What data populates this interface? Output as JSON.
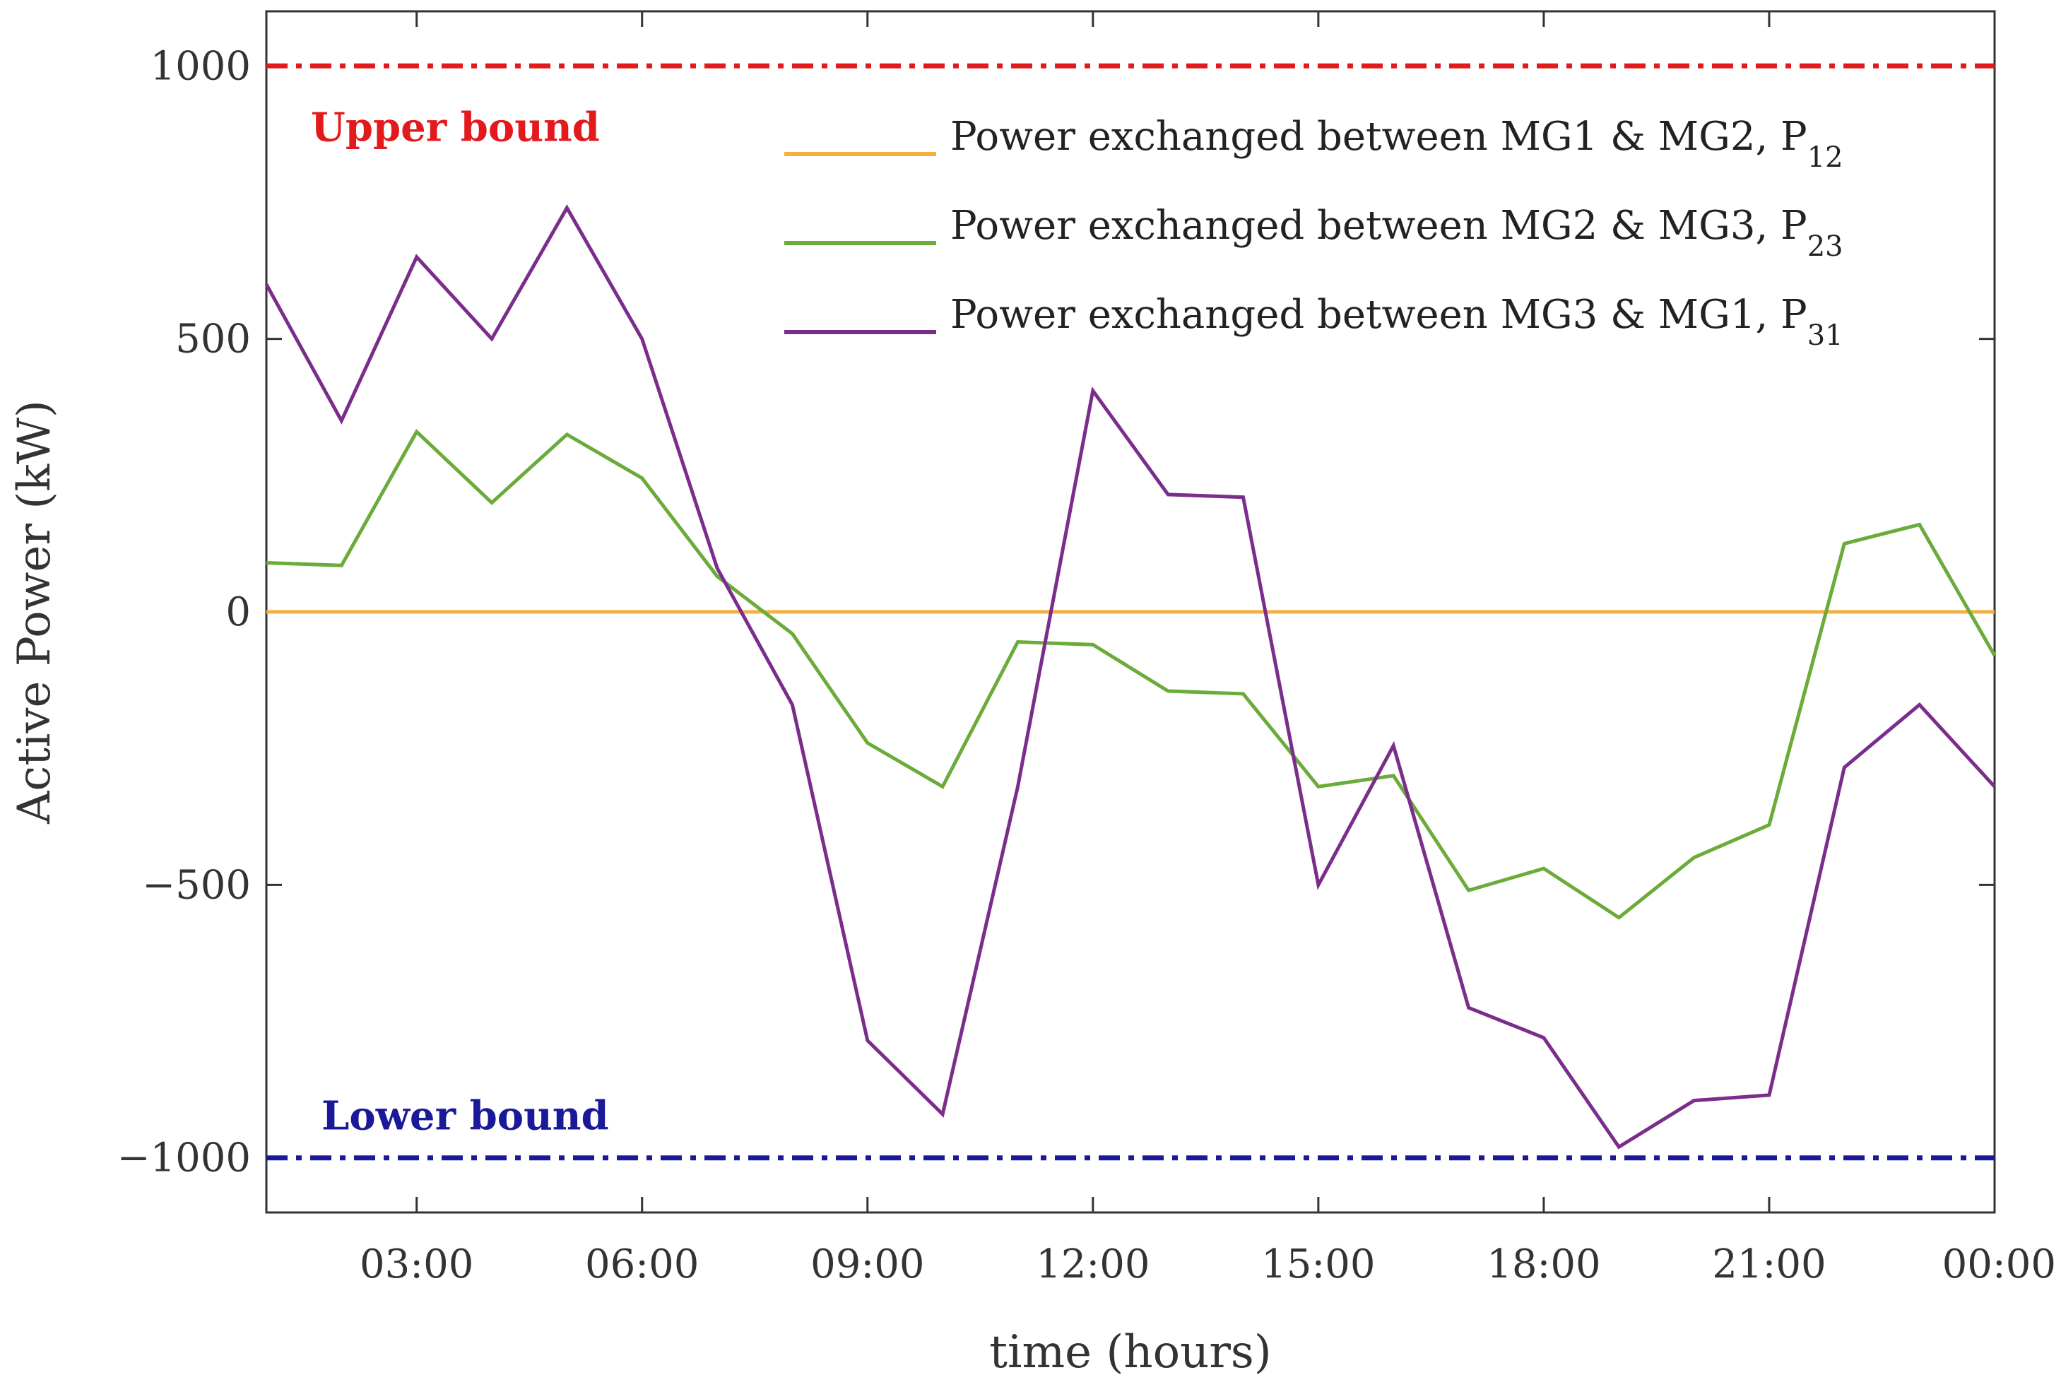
{
  "chart_data": {
    "type": "line",
    "xlabel": "time (hours)",
    "ylabel": "Active Power (kW)",
    "ylim": [
      -1100,
      1100
    ],
    "yticks": [
      1000,
      500,
      0,
      -500,
      -1000
    ],
    "ytick_labels": [
      "1000",
      "500",
      "0",
      "−500",
      "−1000"
    ],
    "xlim": [
      1,
      24
    ],
    "xticks": [
      3,
      6,
      9,
      12,
      15,
      18,
      21,
      24
    ],
    "xtick_labels": [
      "03:00",
      "06:00",
      "09:00",
      "12:00",
      "15:00",
      "18:00",
      "21:00",
      "00:00"
    ],
    "grid": false,
    "legend_position": "top-right",
    "x": [
      1,
      2,
      3,
      4,
      5,
      6,
      7,
      8,
      9,
      10,
      11,
      12,
      13,
      14,
      15,
      16,
      17,
      18,
      19,
      20,
      21,
      22,
      23,
      24
    ],
    "series": [
      {
        "name": "Power exchanged between MG1 & MG2, P",
        "subscript": "12",
        "color": "#f5b041",
        "values": [
          0,
          0,
          0,
          0,
          0,
          0,
          0,
          0,
          0,
          0,
          0,
          0,
          0,
          0,
          0,
          0,
          0,
          0,
          0,
          0,
          0,
          0,
          0,
          0
        ]
      },
      {
        "name": "Power exchanged between MG2 & MG3, P",
        "subscript": "23",
        "color": "#6aab3a",
        "values": [
          90,
          85,
          330,
          200,
          325,
          245,
          65,
          -40,
          -240,
          -320,
          -55,
          -60,
          -145,
          -150,
          -320,
          -300,
          -510,
          -470,
          -560,
          -450,
          -390,
          125,
          160,
          -80
        ]
      },
      {
        "name": "Power exchanged between MG3 & MG1, P",
        "subscript": "31",
        "color": "#7b2d8b",
        "values": [
          600,
          350,
          650,
          500,
          740,
          500,
          80,
          -170,
          -785,
          -920,
          -320,
          405,
          215,
          210,
          -500,
          -245,
          -725,
          -780,
          -980,
          -895,
          -885,
          -285,
          -170,
          -320
        ]
      }
    ],
    "bounds": [
      {
        "label": "Upper bound",
        "value": 1000,
        "color": "#e31a1c"
      },
      {
        "label": "Lower bound",
        "value": -1000,
        "color": "#1a1a99"
      }
    ]
  }
}
